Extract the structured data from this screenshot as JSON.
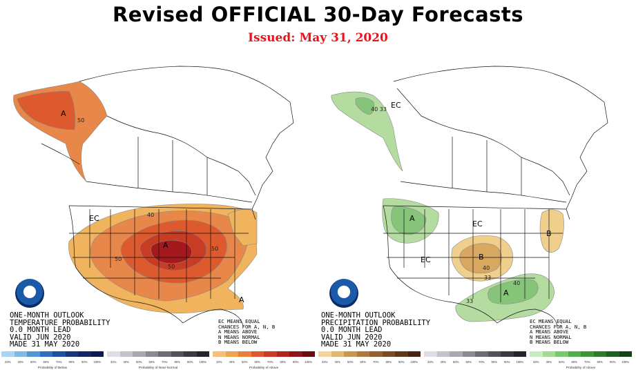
{
  "header": {
    "title": "Revised OFFICIAL 30-Day Forecasts",
    "issued": "Issued: May 31, 2020"
  },
  "maps": [
    {
      "id": "temperature",
      "outlook_lines": [
        "ONE-MONTH OUTLOOK",
        "TEMPERATURE PROBABILITY",
        "0.0 MONTH LEAD",
        "VALID JUN 2020",
        "MADE 31 MAY 2020"
      ],
      "legend_lines": [
        "EC MEANS EQUAL",
        "CHANCES FOR A, N, B",
        "A MEANS ABOVE",
        "N MEANS NORMAL",
        "B MEANS BELOW"
      ],
      "labels": [
        {
          "text": "A",
          "kind": "category"
        },
        {
          "text": "50",
          "kind": "contour"
        },
        {
          "text": "EC",
          "kind": "category"
        },
        {
          "text": "40",
          "kind": "contour"
        },
        {
          "text": "A",
          "kind": "category"
        },
        {
          "text": "50",
          "kind": "contour"
        },
        {
          "text": "50",
          "kind": "contour"
        },
        {
          "text": "50",
          "kind": "contour"
        },
        {
          "text": "A",
          "kind": "category"
        }
      ],
      "colors": {
        "c33": "#f0b45f",
        "c40": "#e8874a",
        "c50": "#dc5a2e",
        "c60": "#c83c26",
        "c70": "#a0161c"
      }
    },
    {
      "id": "precipitation",
      "outlook_lines": [
        "ONE-MONTH OUTLOOK",
        "PRECIPITATION PROBABILITY",
        "0.0 MONTH LEAD",
        "VALID JUN 2020",
        "MADE 31 MAY 2020"
      ],
      "legend_lines": [
        "EC MEANS EQUAL",
        "CHANCES FOR A, N, B",
        "A MEANS ABOVE",
        "N MEANS NORMAL",
        "B MEANS BELOW"
      ],
      "labels": [
        {
          "text": "EC",
          "kind": "category"
        },
        {
          "text": "40 33",
          "kind": "contour"
        },
        {
          "text": "A",
          "kind": "category"
        },
        {
          "text": "EC",
          "kind": "category"
        },
        {
          "text": "EC",
          "kind": "category"
        },
        {
          "text": "B",
          "kind": "category"
        },
        {
          "text": "40",
          "kind": "contour"
        },
        {
          "text": "33",
          "kind": "contour"
        },
        {
          "text": "B",
          "kind": "category"
        },
        {
          "text": "A",
          "kind": "category"
        },
        {
          "text": "33",
          "kind": "contour"
        },
        {
          "text": "40",
          "kind": "contour"
        }
      ],
      "colors": {
        "g33": "#b4dca0",
        "g40": "#86c47a",
        "b33": "#f0cf8c",
        "b40": "#d9a860"
      }
    }
  ],
  "color_bars": [
    {
      "name": "Probability of Below",
      "ticks": [
        "33%",
        "40%",
        "50%",
        "60%",
        "70%",
        "80%",
        "90%",
        "100%"
      ],
      "colors": [
        "#a9d4f2",
        "#7dbbe6",
        "#4f98d6",
        "#2e6fc0",
        "#2050a0",
        "#1a3480",
        "#15236a",
        "#0f1850"
      ]
    },
    {
      "name": "Probability of Near-Normal",
      "ticks": [
        "33%",
        "40%",
        "50%",
        "60%",
        "70%",
        "80%",
        "90%",
        "100%"
      ],
      "colors": [
        "#e0dce4",
        "#c6c2cc",
        "#aaa6b2",
        "#8c8896",
        "#6e6a78",
        "#54505e",
        "#3c3846",
        "#26222e"
      ]
    },
    {
      "name": "Probability of Above",
      "ticks": [
        "33%",
        "40%",
        "50%",
        "60%",
        "70%",
        "80%",
        "90%",
        "100%"
      ],
      "colors": [
        "#f4c07a",
        "#f0a450",
        "#e8803c",
        "#dc5a2e",
        "#c83c26",
        "#b0261e",
        "#8e141a",
        "#6a0c12"
      ]
    },
    {
      "name": "",
      "ticks": [
        "33%",
        "40%",
        "50%",
        "60%",
        "70%",
        "80%",
        "90%",
        "100%"
      ],
      "colors": [
        "#f0d49c",
        "#e0b870",
        "#c89850",
        "#b07a3a",
        "#94602c",
        "#7a4a20",
        "#603818",
        "#462410"
      ]
    },
    {
      "name": "",
      "ticks": [
        "33%",
        "40%",
        "50%",
        "60%",
        "70%",
        "80%",
        "90%",
        "100%"
      ],
      "colors": [
        "#e0dce4",
        "#c6c2cc",
        "#aaa6b2",
        "#8c8896",
        "#6e6a78",
        "#54505e",
        "#3c3846",
        "#26222e"
      ]
    },
    {
      "name": "Probability of Above",
      "ticks": [
        "33%",
        "40%",
        "50%",
        "60%",
        "70%",
        "80%",
        "90%",
        "100%"
      ],
      "colors": [
        "#c8ecc0",
        "#a0dc94",
        "#78c86c",
        "#50b048",
        "#3a9636",
        "#2c7c2a",
        "#1e6020",
        "#124418"
      ]
    }
  ]
}
